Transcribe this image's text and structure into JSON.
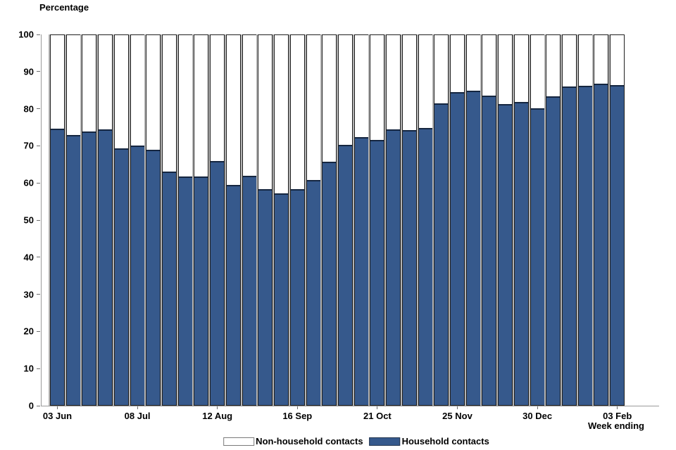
{
  "axes": {
    "y_title": "Percentage",
    "x_title": "Week ending"
  },
  "legend": {
    "items": [
      {
        "label": "Non-household contacts",
        "color": "#FFFFFF"
      },
      {
        "label": "Household contacts",
        "color": "#36598C"
      }
    ]
  },
  "colors": {
    "household_fill": "#36598C",
    "non_household_fill": "#FFFFFF",
    "bar_outline": "#1F1F1F",
    "bar_shadow": "#B4B4B4",
    "axis_line": "#9A9A9A"
  },
  "chart_data": {
    "type": "bar",
    "stacked": true,
    "stack_total": 100,
    "title": "",
    "ylabel": "Percentage",
    "xlabel": "Week ending",
    "ylim": [
      0,
      100
    ],
    "yticks": [
      0,
      10,
      20,
      30,
      40,
      50,
      60,
      70,
      80,
      90,
      100
    ],
    "grid": false,
    "legend_position": "bottom-center",
    "n_bars": 36,
    "x_tick_labels": [
      "03 Jun",
      "08 Jul",
      "12 Aug",
      "16 Sep",
      "21 Oct",
      "25 Nov",
      "30 Dec",
      "03 Feb"
    ],
    "x_tick_bar_indices": [
      0,
      5,
      10,
      15,
      20,
      25,
      30,
      35
    ],
    "series": [
      {
        "name": "Household contacts",
        "color": "#36598C",
        "values": [
          74.7,
          73.0,
          74.0,
          74.6,
          69.4,
          70.1,
          69.0,
          63.1,
          61.8,
          61.7,
          65.9,
          59.6,
          61.9,
          58.3,
          57.2,
          58.4,
          60.8,
          65.8,
          70.4,
          72.4,
          71.7,
          74.5,
          74.3,
          74.9,
          81.5,
          84.6,
          84.9,
          83.6,
          81.4,
          81.9,
          80.2,
          83.5,
          86.1,
          86.4,
          86.9,
          86.5
        ]
      },
      {
        "name": "Non-household contacts",
        "color": "#FFFFFF",
        "values": [
          25.3,
          27.0,
          26.0,
          25.4,
          30.6,
          29.9,
          31.0,
          36.9,
          38.2,
          38.3,
          34.1,
          40.4,
          38.1,
          41.7,
          42.8,
          41.6,
          39.2,
          34.2,
          29.6,
          27.6,
          28.3,
          25.5,
          25.7,
          25.1,
          18.5,
          15.4,
          15.1,
          16.4,
          18.6,
          18.1,
          19.8,
          16.5,
          13.9,
          13.6,
          13.1,
          13.5
        ]
      }
    ]
  }
}
